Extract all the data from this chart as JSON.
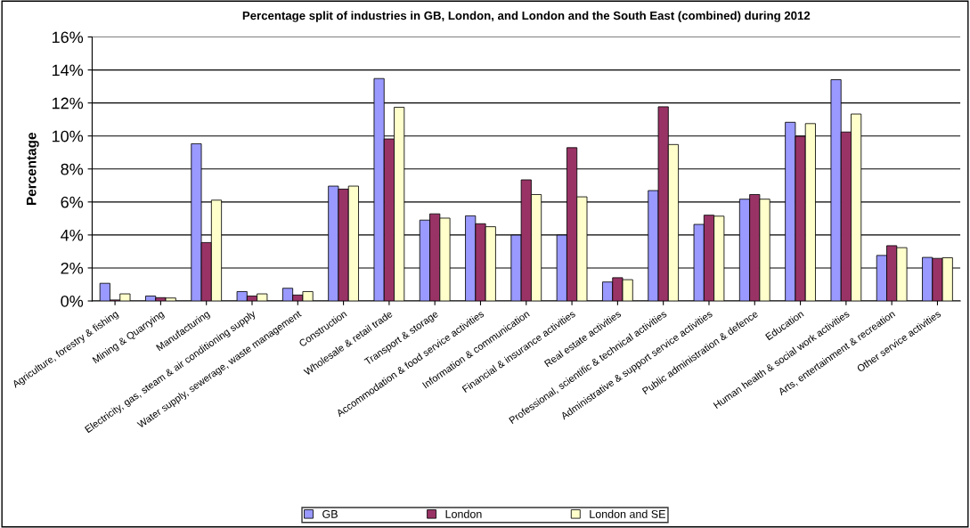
{
  "chart_data": {
    "type": "bar",
    "title": "Percentage split of industries in GB, London, and London and the South East (combined) during 2012",
    "ylabel": "Percentage",
    "categories": [
      "Agriculture, forestry & fishing",
      "Mining & Quarrying",
      "Manufacturing",
      "Electricity, gas, steam & air conditioning supply",
      "Water supply, sewerage, waste management",
      "Construction",
      "Wholesale & retail trade",
      "Transport & storage",
      "Accommodation & food service activities",
      "Information & communication",
      "Financial & insurance activities",
      "Real estate activities",
      "Professional, scientific & technical activities",
      "Administrative & support service activities",
      "Public administration & defence",
      "Education",
      "Human health & social work activities",
      "Arts, entertainment & recreation",
      "Other service activities"
    ],
    "series": [
      {
        "name": "GB",
        "color": "#9999ff",
        "values": [
          1.07,
          0.3,
          9.53,
          0.57,
          0.77,
          6.96,
          13.48,
          4.9,
          5.16,
          3.99,
          3.99,
          1.15,
          6.69,
          4.64,
          6.17,
          10.83,
          13.41,
          2.76,
          2.64
        ]
      },
      {
        "name": "London",
        "color": "#993366",
        "values": [
          0.06,
          0.2,
          3.54,
          0.3,
          0.36,
          6.78,
          9.82,
          5.28,
          4.68,
          7.34,
          9.29,
          1.41,
          11.77,
          5.2,
          6.45,
          9.98,
          10.24,
          3.35,
          2.58
        ]
      },
      {
        "name": "London and SE",
        "color": "#ffffcc",
        "values": [
          0.43,
          0.18,
          6.11,
          0.43,
          0.57,
          6.96,
          11.74,
          5.02,
          4.5,
          6.45,
          6.31,
          1.29,
          9.48,
          5.14,
          6.17,
          10.75,
          11.33,
          3.23,
          2.62
        ]
      }
    ],
    "ylim": [
      0,
      16
    ],
    "yticks": [
      {
        "value": 0,
        "label": "0%"
      },
      {
        "value": 2,
        "label": "2%"
      },
      {
        "value": 4,
        "label": "4%"
      },
      {
        "value": 6,
        "label": "6%"
      },
      {
        "value": 8,
        "label": "8%"
      },
      {
        "value": 10,
        "label": "10%"
      },
      {
        "value": 12,
        "label": "12%"
      },
      {
        "value": 14,
        "label": "14%"
      },
      {
        "value": 16,
        "label": "16%"
      }
    ],
    "grid": "y",
    "legend": "bottom"
  }
}
